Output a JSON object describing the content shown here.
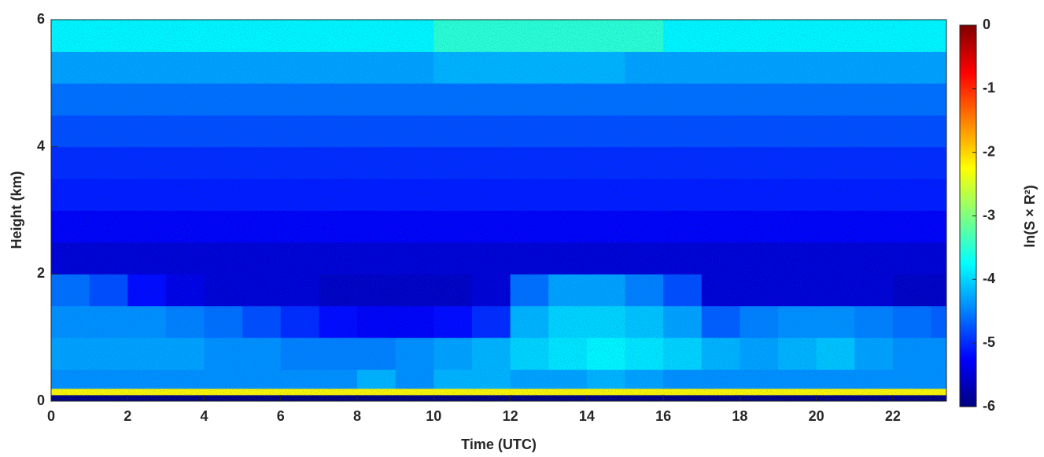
{
  "chart_data": {
    "type": "heatmap",
    "x_label": "Time (UTC)",
    "y_label": "Height (km)",
    "colorbar_label": "ln(S × R²)",
    "colormap": "jet",
    "xlim": [
      0,
      23.4
    ],
    "xticks": [
      0,
      2,
      4,
      6,
      8,
      10,
      12,
      14,
      16,
      18,
      20,
      22
    ],
    "ylim": [
      0,
      6
    ],
    "yticks": [
      0,
      2,
      4,
      6
    ],
    "clim": [
      -6,
      0
    ],
    "cticks": [
      0,
      -1,
      -2,
      -3,
      -4,
      -5,
      -6
    ],
    "xbins": [
      0,
      1,
      2,
      3,
      4,
      5,
      6,
      7,
      8,
      9,
      10,
      11,
      12,
      13,
      14,
      15,
      16,
      17,
      18,
      19,
      20,
      21,
      22,
      23,
      23.4
    ],
    "ybins": [
      0,
      0.1,
      0.2,
      0.5,
      1,
      1.5,
      2,
      2.5,
      3,
      3.5,
      4,
      4.5,
      5,
      5.5,
      6
    ],
    "z": [
      [
        -6,
        -6,
        -6,
        -6,
        -6,
        -6,
        -6,
        -6,
        -6,
        -6,
        -6,
        -6,
        -6,
        -6,
        -6,
        -6,
        -6,
        -6,
        -6,
        -6,
        -6,
        -6,
        -6,
        -6
      ],
      [
        -2.2,
        -2.2,
        -2.2,
        -2.2,
        -2.2,
        -2.2,
        -2.2,
        -2.2,
        -2.2,
        -2.2,
        -2.2,
        -2.2,
        -2.2,
        -2.2,
        -2.2,
        -2.2,
        -2.2,
        -2.2,
        -2.2,
        -2.2,
        -2.2,
        -2.2,
        -2.2,
        -2.2
      ],
      [
        -4.4,
        -4.4,
        -4.4,
        -4.4,
        -4.4,
        -4.4,
        -4.4,
        -4.4,
        -4.2,
        -4.4,
        -4.2,
        -4.2,
        -4.3,
        -4.3,
        -4.2,
        -4.3,
        -4.4,
        -4.4,
        -4.4,
        -4.4,
        -4.4,
        -4.4,
        -4.4,
        -4.4
      ],
      [
        -4.3,
        -4.3,
        -4.3,
        -4.3,
        -4.4,
        -4.4,
        -4.5,
        -4.5,
        -4.5,
        -4.4,
        -4.3,
        -4.2,
        -4.0,
        -3.9,
        -3.8,
        -3.9,
        -4.0,
        -4.2,
        -4.3,
        -4.2,
        -4.1,
        -4.3,
        -4.4,
        -4.4
      ],
      [
        -4.4,
        -4.4,
        -4.4,
        -4.5,
        -4.6,
        -4.8,
        -5.0,
        -5.2,
        -5.3,
        -5.3,
        -5.2,
        -5.0,
        -4.2,
        -4.0,
        -4.0,
        -4.1,
        -4.3,
        -4.7,
        -4.5,
        -4.4,
        -4.4,
        -4.5,
        -4.6,
        -4.7
      ],
      [
        -4.6,
        -4.8,
        -5.2,
        -5.4,
        -5.5,
        -5.5,
        -5.5,
        -5.6,
        -5.6,
        -5.6,
        -5.6,
        -5.5,
        -4.6,
        -4.3,
        -4.3,
        -4.5,
        -4.8,
        -5.5,
        -5.5,
        -5.5,
        -5.5,
        -5.5,
        -5.6,
        -5.6
      ],
      [
        -5.5,
        -5.5,
        -5.5,
        -5.5,
        -5.5,
        -5.5,
        -5.5,
        -5.5,
        -5.5,
        -5.5,
        -5.5,
        -5.5,
        -5.5,
        -5.5,
        -5.5,
        -5.5,
        -5.5,
        -5.5,
        -5.5,
        -5.5,
        -5.5,
        -5.5,
        -5.5,
        -5.5
      ],
      [
        -5.3,
        -5.3,
        -5.3,
        -5.3,
        -5.3,
        -5.3,
        -5.3,
        -5.3,
        -5.3,
        -5.3,
        -5.3,
        -5.3,
        -5.3,
        -5.3,
        -5.3,
        -5.3,
        -5.3,
        -5.3,
        -5.3,
        -5.3,
        -5.3,
        -5.3,
        -5.3,
        -5.3
      ],
      [
        -5.1,
        -5.1,
        -5.1,
        -5.1,
        -5.1,
        -5.1,
        -5.1,
        -5.1,
        -5.1,
        -5.1,
        -5.1,
        -5.1,
        -5.1,
        -5.1,
        -5.1,
        -5.1,
        -5.1,
        -5.1,
        -5.1,
        -5.1,
        -5.1,
        -5.1,
        -5.1,
        -5.1
      ],
      [
        -5.0,
        -5.0,
        -5.0,
        -5.0,
        -5.0,
        -5.0,
        -5.0,
        -5.0,
        -5.0,
        -5.0,
        -5.0,
        -5.0,
        -5.0,
        -5.0,
        -5.0,
        -5.0,
        -5.0,
        -5.0,
        -5.0,
        -5.0,
        -5.0,
        -5.0,
        -5.0,
        -5.0
      ],
      [
        -4.8,
        -4.8,
        -4.8,
        -4.8,
        -4.8,
        -4.8,
        -4.8,
        -4.8,
        -4.8,
        -4.8,
        -4.8,
        -4.8,
        -4.8,
        -4.8,
        -4.8,
        -4.8,
        -4.8,
        -4.8,
        -4.8,
        -4.8,
        -4.8,
        -4.8,
        -4.8,
        -4.8
      ],
      [
        -4.6,
        -4.6,
        -4.6,
        -4.6,
        -4.6,
        -4.6,
        -4.6,
        -4.6,
        -4.6,
        -4.6,
        -4.6,
        -4.6,
        -4.6,
        -4.6,
        -4.6,
        -4.6,
        -4.6,
        -4.6,
        -4.6,
        -4.6,
        -4.6,
        -4.6,
        -4.6,
        -4.6
      ],
      [
        -4.3,
        -4.3,
        -4.3,
        -4.3,
        -4.3,
        -4.3,
        -4.3,
        -4.3,
        -4.3,
        -4.3,
        -4.2,
        -4.2,
        -4.2,
        -4.2,
        -4.2,
        -4.3,
        -4.3,
        -4.3,
        -4.3,
        -4.3,
        -4.3,
        -4.3,
        -4.3,
        -4.3
      ],
      [
        -3.8,
        -3.8,
        -3.8,
        -3.8,
        -3.8,
        -3.8,
        -3.8,
        -3.8,
        -3.8,
        -3.8,
        -3.5,
        -3.5,
        -3.5,
        -3.5,
        -3.5,
        -3.5,
        -3.8,
        -3.8,
        -3.8,
        -3.8,
        -3.8,
        -3.8,
        -3.8,
        -3.8
      ]
    ]
  }
}
